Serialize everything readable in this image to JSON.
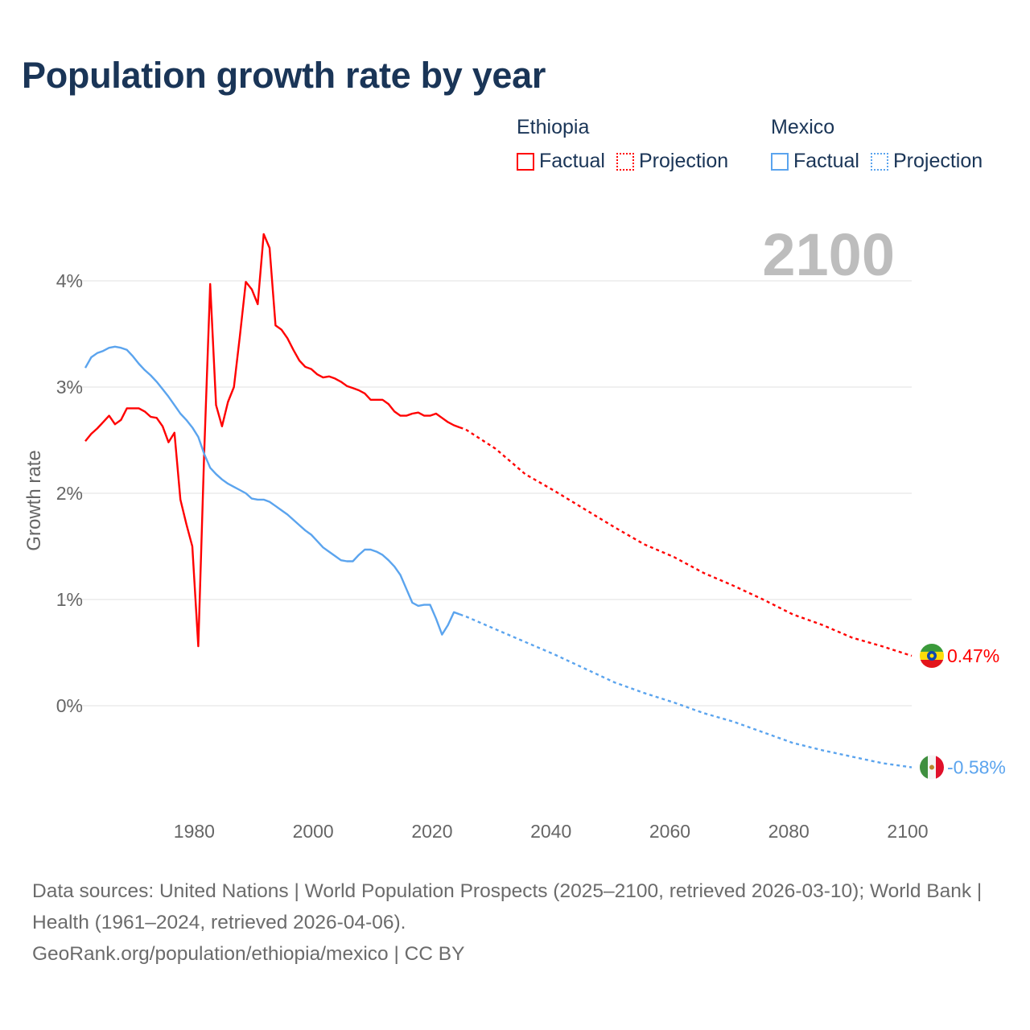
{
  "title": "Population growth rate by year",
  "legend": {
    "groups": [
      {
        "country": "Ethiopia",
        "factual_label": "Factual",
        "projection_label": "Projection",
        "color": "#ff0000"
      },
      {
        "country": "Mexico",
        "factual_label": "Factual",
        "projection_label": "Projection",
        "color": "#5ba4ee"
      }
    ]
  },
  "year_watermark": "2100",
  "chart_data": {
    "type": "line",
    "title": "Population growth rate by year",
    "xlabel": "",
    "ylabel": "Growth rate",
    "xlim": [
      1961,
      2100
    ],
    "ylim": [
      -1,
      4.5
    ],
    "x_ticks": [
      "1980",
      "2000",
      "2020",
      "2040",
      "2060",
      "2080",
      "2100"
    ],
    "x_tick_values": [
      1980,
      2000,
      2020,
      2040,
      2060,
      2080,
      2100
    ],
    "y_ticks": [
      "0%",
      "1%",
      "2%",
      "3%",
      "4%"
    ],
    "y_tick_values": [
      0,
      1,
      2,
      3,
      4
    ],
    "grid": true,
    "legend_position": "top-right",
    "series": [
      {
        "name": "Ethiopia Factual",
        "country": "Ethiopia",
        "kind": "factual",
        "color": "#ff0000",
        "x_start": 1961,
        "values": [
          2.49,
          2.56,
          2.61,
          2.67,
          2.73,
          2.65,
          2.69,
          2.8,
          2.8,
          2.8,
          2.77,
          2.72,
          2.71,
          2.63,
          2.48,
          2.57,
          1.94,
          1.71,
          1.5,
          0.56,
          2.39,
          3.97,
          2.83,
          2.63,
          2.86,
          3.0,
          3.48,
          3.99,
          3.92,
          3.78,
          4.44,
          4.31,
          3.58,
          3.54,
          3.46,
          3.35,
          3.25,
          3.19,
          3.17,
          3.12,
          3.09,
          3.1,
          3.08,
          3.05,
          3.01,
          2.99,
          2.97,
          2.94,
          2.88,
          2.88,
          2.88,
          2.84,
          2.77,
          2.73,
          2.73,
          2.75,
          2.76,
          2.73,
          2.73,
          2.75,
          2.71,
          2.67,
          2.64,
          2.62
        ]
      },
      {
        "name": "Ethiopia Projection",
        "country": "Ethiopia",
        "kind": "projection",
        "color": "#ff0000",
        "x": [
          2024,
          2025,
          2030,
          2035,
          2040,
          2045,
          2050,
          2055,
          2060,
          2065,
          2070,
          2075,
          2080,
          2085,
          2090,
          2095,
          2100
        ],
        "values": [
          2.62,
          2.6,
          2.42,
          2.18,
          2.02,
          1.85,
          1.68,
          1.52,
          1.4,
          1.25,
          1.13,
          1.0,
          0.86,
          0.76,
          0.64,
          0.56,
          0.47
        ]
      },
      {
        "name": "Mexico Factual",
        "country": "Mexico",
        "kind": "factual",
        "color": "#5ba4ee",
        "x_start": 1961,
        "values": [
          3.18,
          3.28,
          3.32,
          3.34,
          3.37,
          3.38,
          3.37,
          3.35,
          3.29,
          3.22,
          3.16,
          3.11,
          3.05,
          2.98,
          2.91,
          2.83,
          2.75,
          2.69,
          2.62,
          2.53,
          2.37,
          2.24,
          2.18,
          2.13,
          2.09,
          2.06,
          2.03,
          2.0,
          1.95,
          1.94,
          1.94,
          1.92,
          1.88,
          1.84,
          1.8,
          1.75,
          1.7,
          1.65,
          1.61,
          1.55,
          1.49,
          1.45,
          1.41,
          1.37,
          1.36,
          1.36,
          1.42,
          1.47,
          1.47,
          1.45,
          1.42,
          1.37,
          1.31,
          1.23,
          1.1,
          0.97,
          0.94,
          0.95,
          0.95,
          0.82,
          0.67,
          0.76,
          0.88,
          0.86
        ]
      },
      {
        "name": "Mexico Projection",
        "country": "Mexico",
        "kind": "projection",
        "color": "#5ba4ee",
        "x": [
          2024,
          2025,
          2030,
          2035,
          2040,
          2045,
          2050,
          2055,
          2060,
          2065,
          2070,
          2075,
          2080,
          2085,
          2090,
          2095,
          2100
        ],
        "values": [
          0.86,
          0.84,
          0.72,
          0.6,
          0.48,
          0.35,
          0.22,
          0.12,
          0.03,
          -0.07,
          -0.15,
          -0.25,
          -0.35,
          -0.42,
          -0.48,
          -0.54,
          -0.58
        ]
      }
    ],
    "end_labels": [
      {
        "country": "Ethiopia",
        "text": "0.47%",
        "value": 0.47,
        "color": "#ff0000"
      },
      {
        "country": "Mexico",
        "text": "-0.58%",
        "value": -0.58,
        "color": "#5ba4ee"
      }
    ]
  },
  "footer": {
    "sources": "Data sources: United Nations | World Population Prospects (2025–2100, retrieved 2026-03-10); World Bank | Health (1961–2024, retrieved 2026-04-06).",
    "link": "GeoRank.org/population/ethiopia/mexico | CC BY"
  }
}
